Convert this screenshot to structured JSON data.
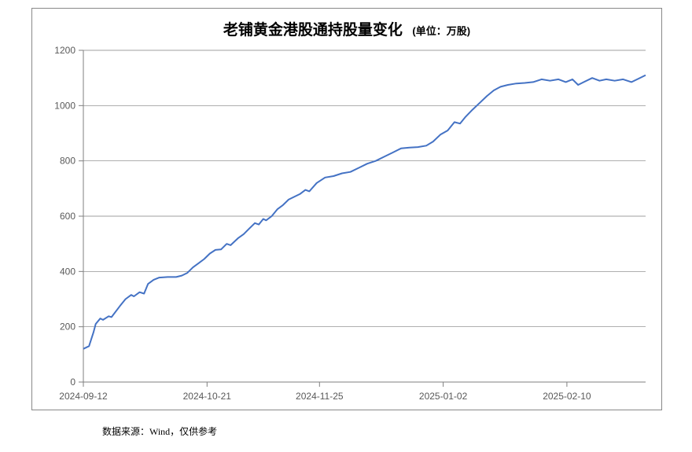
{
  "chart": {
    "type": "line",
    "title": "老铺黄金港股通持股量变化",
    "unit_label": "(单位：万股)",
    "title_fontsize": 19,
    "unit_fontsize": 13,
    "background_color": "#ffffff",
    "border_color": "#888888",
    "grid_color": "#7f7f7f",
    "grid_width": 0.7,
    "axis_color": "#7f7f7f",
    "tick_font_color": "#595959",
    "tick_font_size": 12,
    "line_color": "#4472c4",
    "line_width": 2,
    "ylim": [
      0,
      1200
    ],
    "ytick_step": 200,
    "yticks": [
      0,
      200,
      400,
      600,
      800,
      1000,
      1200
    ],
    "xticks": [
      "2024-09-12",
      "2024-10-21",
      "2024-11-25",
      "2025-01-02",
      "2025-02-10"
    ],
    "xtick_positions": [
      0,
      0.22,
      0.42,
      0.64,
      0.86
    ],
    "series": [
      {
        "x": 0.0,
        "y": 120
      },
      {
        "x": 0.01,
        "y": 130
      },
      {
        "x": 0.018,
        "y": 180
      },
      {
        "x": 0.022,
        "y": 210
      },
      {
        "x": 0.03,
        "y": 230
      },
      {
        "x": 0.035,
        "y": 225
      },
      {
        "x": 0.045,
        "y": 238
      },
      {
        "x": 0.05,
        "y": 235
      },
      {
        "x": 0.065,
        "y": 275
      },
      {
        "x": 0.075,
        "y": 300
      },
      {
        "x": 0.085,
        "y": 315
      },
      {
        "x": 0.09,
        "y": 310
      },
      {
        "x": 0.1,
        "y": 325
      },
      {
        "x": 0.108,
        "y": 320
      },
      {
        "x": 0.115,
        "y": 355
      },
      {
        "x": 0.125,
        "y": 370
      },
      {
        "x": 0.135,
        "y": 378
      },
      {
        "x": 0.15,
        "y": 380
      },
      {
        "x": 0.165,
        "y": 380
      },
      {
        "x": 0.175,
        "y": 385
      },
      {
        "x": 0.185,
        "y": 395
      },
      {
        "x": 0.195,
        "y": 415
      },
      {
        "x": 0.205,
        "y": 430
      },
      {
        "x": 0.215,
        "y": 445
      },
      {
        "x": 0.225,
        "y": 465
      },
      {
        "x": 0.235,
        "y": 478
      },
      {
        "x": 0.245,
        "y": 480
      },
      {
        "x": 0.255,
        "y": 500
      },
      {
        "x": 0.262,
        "y": 495
      },
      {
        "x": 0.275,
        "y": 520
      },
      {
        "x": 0.285,
        "y": 535
      },
      {
        "x": 0.295,
        "y": 555
      },
      {
        "x": 0.305,
        "y": 575
      },
      {
        "x": 0.312,
        "y": 570
      },
      {
        "x": 0.32,
        "y": 590
      },
      {
        "x": 0.325,
        "y": 585
      },
      {
        "x": 0.335,
        "y": 600
      },
      {
        "x": 0.345,
        "y": 625
      },
      {
        "x": 0.355,
        "y": 640
      },
      {
        "x": 0.365,
        "y": 660
      },
      {
        "x": 0.375,
        "y": 670
      },
      {
        "x": 0.385,
        "y": 680
      },
      {
        "x": 0.395,
        "y": 695
      },
      {
        "x": 0.402,
        "y": 690
      },
      {
        "x": 0.415,
        "y": 720
      },
      {
        "x": 0.43,
        "y": 740
      },
      {
        "x": 0.445,
        "y": 745
      },
      {
        "x": 0.46,
        "y": 755
      },
      {
        "x": 0.475,
        "y": 760
      },
      {
        "x": 0.49,
        "y": 775
      },
      {
        "x": 0.505,
        "y": 790
      },
      {
        "x": 0.52,
        "y": 800
      },
      {
        "x": 0.535,
        "y": 815
      },
      {
        "x": 0.55,
        "y": 830
      },
      {
        "x": 0.565,
        "y": 845
      },
      {
        "x": 0.58,
        "y": 848
      },
      {
        "x": 0.595,
        "y": 850
      },
      {
        "x": 0.61,
        "y": 855
      },
      {
        "x": 0.622,
        "y": 870
      },
      {
        "x": 0.635,
        "y": 895
      },
      {
        "x": 0.648,
        "y": 910
      },
      {
        "x": 0.66,
        "y": 940
      },
      {
        "x": 0.67,
        "y": 935
      },
      {
        "x": 0.68,
        "y": 960
      },
      {
        "x": 0.692,
        "y": 985
      },
      {
        "x": 0.705,
        "y": 1010
      },
      {
        "x": 0.718,
        "y": 1035
      },
      {
        "x": 0.73,
        "y": 1055
      },
      {
        "x": 0.742,
        "y": 1068
      },
      {
        "x": 0.755,
        "y": 1075
      },
      {
        "x": 0.77,
        "y": 1080
      },
      {
        "x": 0.785,
        "y": 1082
      },
      {
        "x": 0.8,
        "y": 1085
      },
      {
        "x": 0.815,
        "y": 1095
      },
      {
        "x": 0.83,
        "y": 1090
      },
      {
        "x": 0.845,
        "y": 1095
      },
      {
        "x": 0.858,
        "y": 1085
      },
      {
        "x": 0.87,
        "y": 1095
      },
      {
        "x": 0.88,
        "y": 1075
      },
      {
        "x": 0.89,
        "y": 1085
      },
      {
        "x": 0.905,
        "y": 1100
      },
      {
        "x": 0.918,
        "y": 1090
      },
      {
        "x": 0.93,
        "y": 1095
      },
      {
        "x": 0.945,
        "y": 1090
      },
      {
        "x": 0.96,
        "y": 1095
      },
      {
        "x": 0.975,
        "y": 1085
      },
      {
        "x": 0.988,
        "y": 1098
      },
      {
        "x": 1.0,
        "y": 1110
      }
    ]
  },
  "footer": {
    "text": "数据来源：Wind，仅供参考"
  }
}
